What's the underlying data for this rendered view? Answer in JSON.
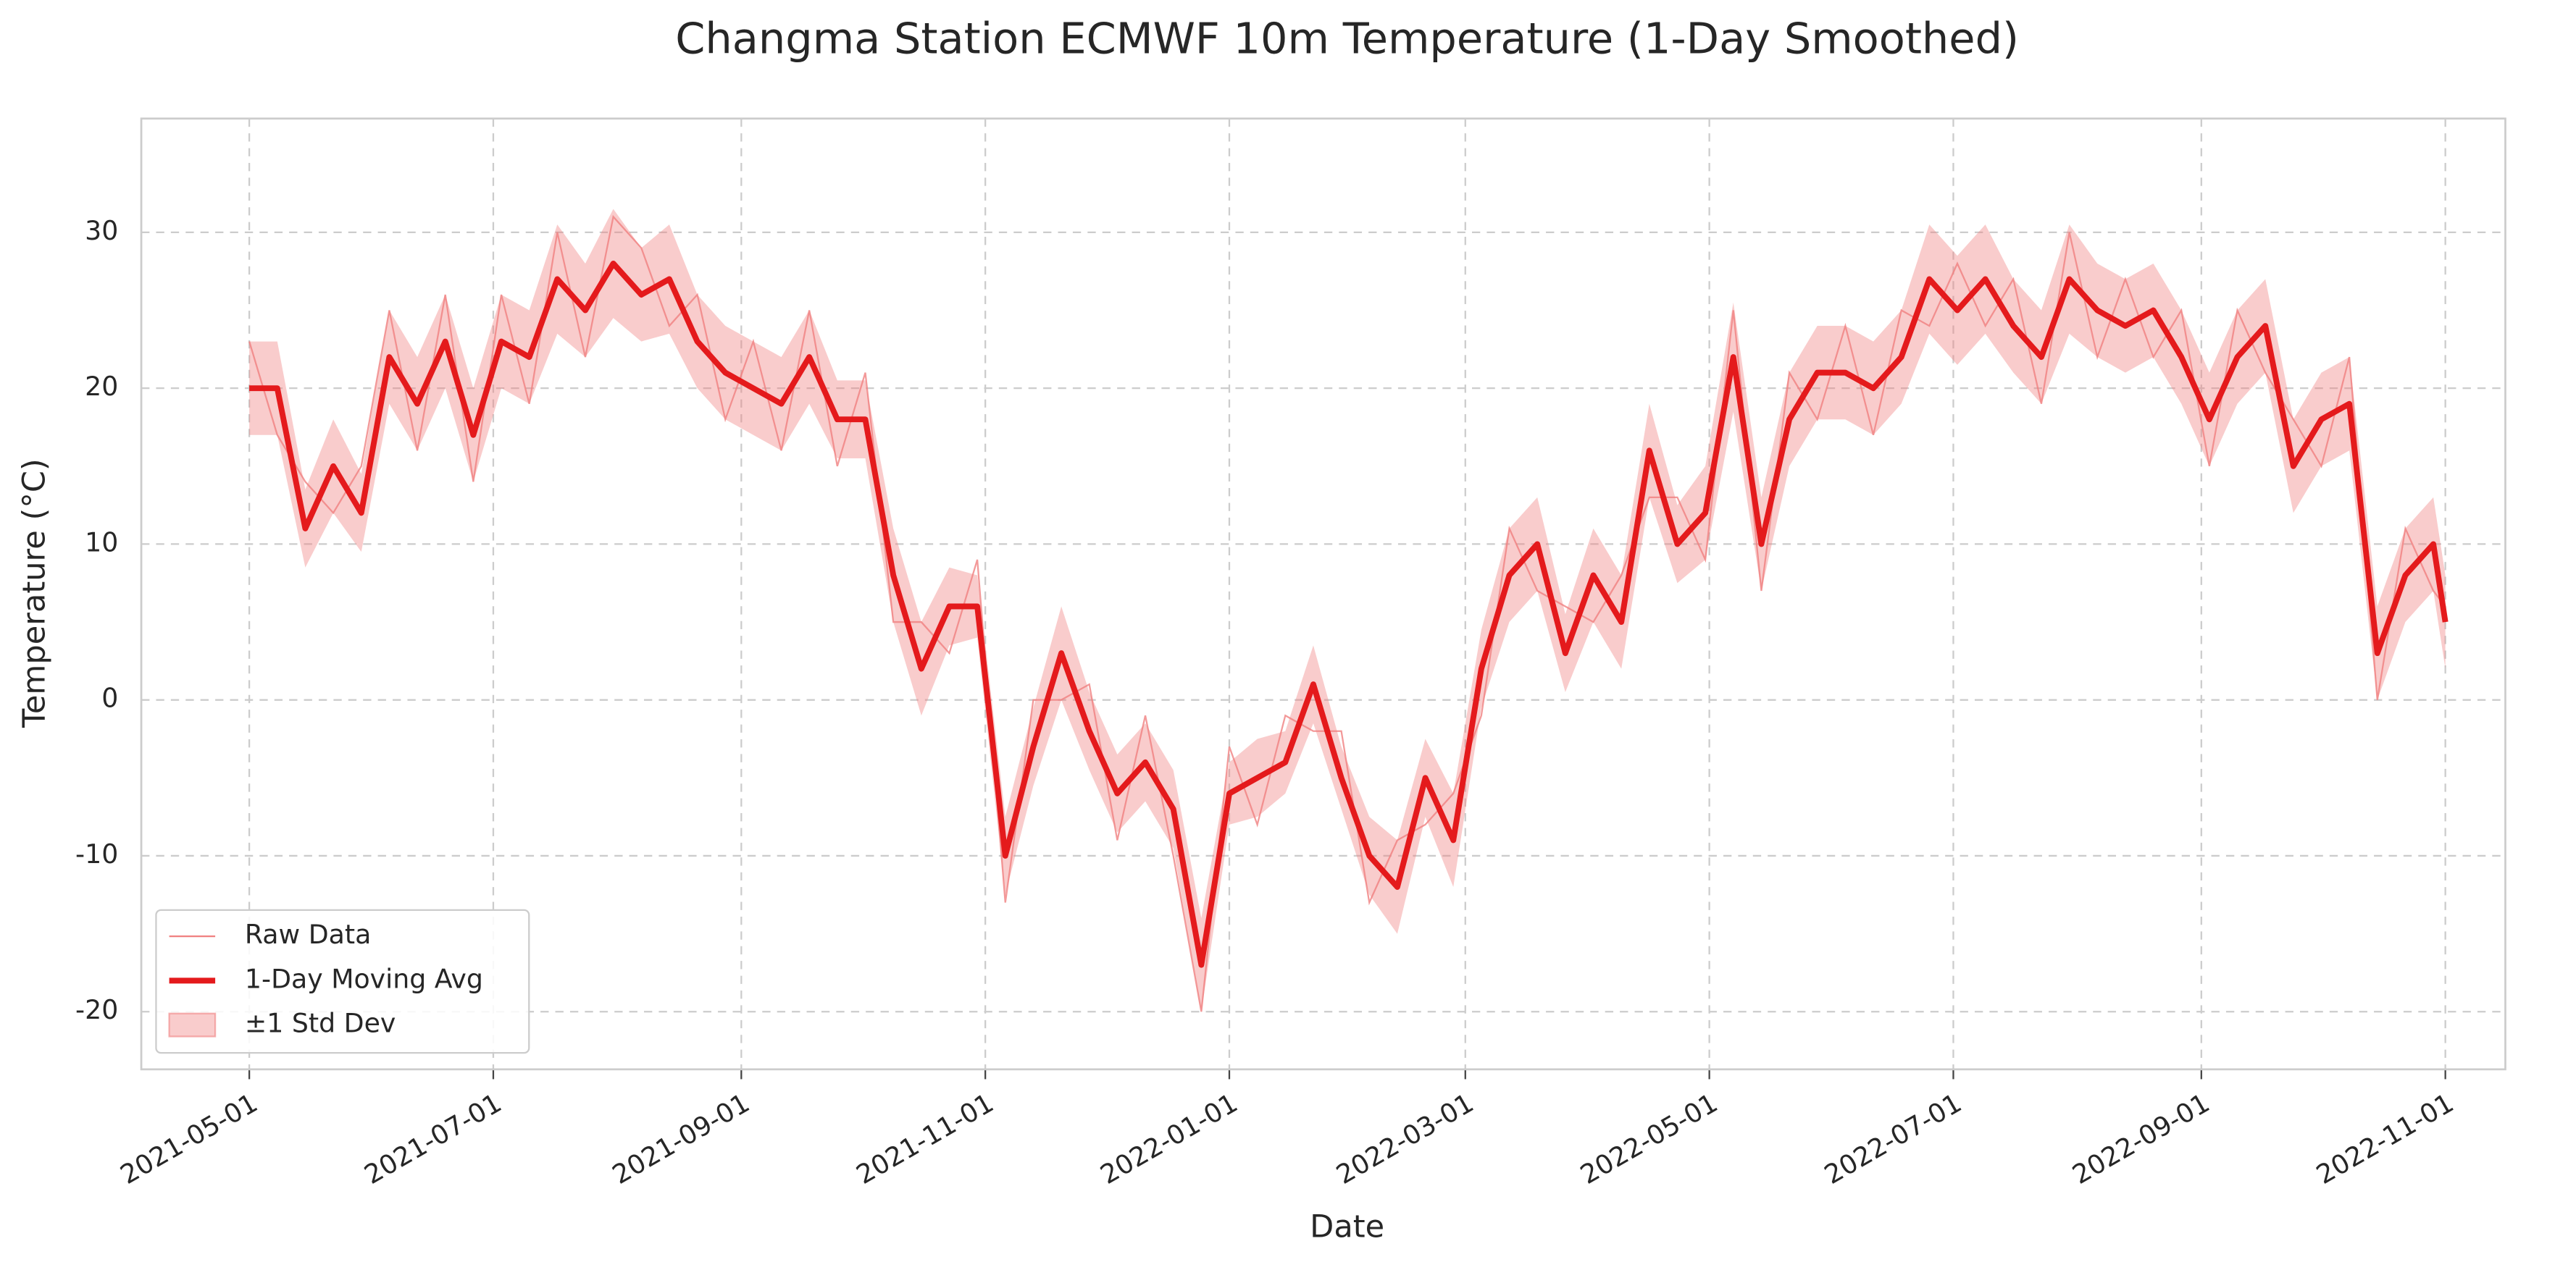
{
  "chart_data": {
    "type": "line",
    "title": "Changma Station ECMWF 10m Temperature (1-Day Smoothed)",
    "x_label": "Date",
    "y_label": "Temperature (°C)",
    "x": [
      "2021-05-01",
      "2021-05-08",
      "2021-05-15",
      "2021-05-22",
      "2021-05-29",
      "2021-06-05",
      "2021-06-12",
      "2021-06-19",
      "2021-06-26",
      "2021-07-03",
      "2021-07-10",
      "2021-07-17",
      "2021-07-24",
      "2021-07-31",
      "2021-08-07",
      "2021-08-14",
      "2021-08-21",
      "2021-08-28",
      "2021-09-04",
      "2021-09-11",
      "2021-09-18",
      "2021-09-25",
      "2021-10-02",
      "2021-10-09",
      "2021-10-16",
      "2021-10-23",
      "2021-10-30",
      "2021-11-06",
      "2021-11-13",
      "2021-11-20",
      "2021-11-27",
      "2021-12-04",
      "2021-12-11",
      "2021-12-18",
      "2021-12-25",
      "2022-01-01",
      "2022-01-08",
      "2022-01-15",
      "2022-01-22",
      "2022-01-29",
      "2022-02-05",
      "2022-02-12",
      "2022-02-19",
      "2022-02-26",
      "2022-03-05",
      "2022-03-12",
      "2022-03-19",
      "2022-03-26",
      "2022-04-02",
      "2022-04-09",
      "2022-04-16",
      "2022-04-23",
      "2022-04-30",
      "2022-05-07",
      "2022-05-14",
      "2022-05-21",
      "2022-05-28",
      "2022-06-04",
      "2022-06-11",
      "2022-06-18",
      "2022-06-25",
      "2022-07-02",
      "2022-07-09",
      "2022-07-16",
      "2022-07-23",
      "2022-07-30",
      "2022-08-06",
      "2022-08-13",
      "2022-08-20",
      "2022-08-27",
      "2022-09-03",
      "2022-09-10",
      "2022-09-17",
      "2022-09-24",
      "2022-10-01",
      "2022-10-08",
      "2022-10-15",
      "2022-10-22",
      "2022-10-29",
      "2022-11-01"
    ],
    "series": [
      {
        "name": "Raw Data",
        "color": "#f08080",
        "values": [
          23,
          17,
          14,
          12,
          15,
          25,
          16,
          26,
          14,
          26,
          19,
          30,
          22,
          31,
          29,
          24,
          26,
          18,
          23,
          16,
          25,
          15,
          21,
          5,
          5,
          3,
          9,
          -13,
          0,
          0,
          1,
          -9,
          -1,
          -10,
          -20,
          -3,
          -8,
          -1,
          -2,
          -2,
          -13,
          -9,
          -8,
          -6,
          -1,
          11,
          7,
          6,
          5,
          8,
          13,
          13,
          9,
          25,
          7,
          21,
          18,
          24,
          17,
          25,
          24,
          28,
          24,
          27,
          19,
          30,
          22,
          27,
          22,
          25,
          15,
          25,
          21,
          18,
          15,
          22,
          0,
          11,
          7,
          6
        ]
      },
      {
        "name": "1-Day Moving Avg",
        "color": "#e41a1c",
        "values": [
          20,
          20,
          11,
          15,
          12,
          22,
          19,
          23,
          17,
          23,
          22,
          27,
          25,
          28,
          26,
          27,
          23,
          21,
          20,
          19,
          22,
          18,
          18,
          8,
          2,
          6,
          6,
          -10,
          -3,
          3,
          -2,
          -6,
          -4,
          -7,
          -17,
          -6,
          -5,
          -4,
          1,
          -5,
          -10,
          -12,
          -5,
          -9,
          2,
          8,
          10,
          3,
          8,
          5,
          16,
          10,
          12,
          22,
          10,
          18,
          21,
          21,
          20,
          22,
          27,
          25,
          27,
          24,
          22,
          27,
          25,
          24,
          25,
          22,
          18,
          22,
          24,
          15,
          18,
          19,
          3,
          8,
          10,
          5
        ]
      },
      {
        "name": "±1 Std Dev",
        "color": "#f08080",
        "values": [
          3,
          3,
          2.5,
          3,
          2.5,
          3,
          3,
          3,
          3,
          3,
          3,
          3.5,
          3,
          3.5,
          3,
          3.5,
          3,
          3,
          3,
          3,
          3,
          2.5,
          2.5,
          3,
          3,
          2.5,
          2,
          2.5,
          2.5,
          3,
          2.5,
          2.5,
          2.5,
          2.5,
          3,
          2,
          2.5,
          2,
          2.5,
          2,
          2.5,
          3,
          2.5,
          3,
          2.5,
          3,
          3,
          2.5,
          3,
          3,
          3,
          2.5,
          3,
          3.5,
          3,
          3,
          3,
          3,
          3,
          3,
          3.5,
          3.5,
          3.5,
          3,
          3,
          3.5,
          3,
          3,
          3,
          3,
          3,
          3,
          3,
          3,
          3,
          3,
          3,
          3,
          3,
          3
        ]
      }
    ],
    "xlim": [
      "2021-04-04",
      "2022-11-16"
    ],
    "xticks": [
      "2021-05-01",
      "2021-07-01",
      "2021-09-01",
      "2021-11-01",
      "2022-01-01",
      "2022-03-01",
      "2022-05-01",
      "2022-07-01",
      "2022-09-01",
      "2022-11-01"
    ],
    "ylim": [
      -23.7,
      37.3
    ],
    "yticks": [
      -20,
      -10,
      0,
      10,
      20,
      30
    ],
    "grid": true,
    "legend": "lower left"
  }
}
